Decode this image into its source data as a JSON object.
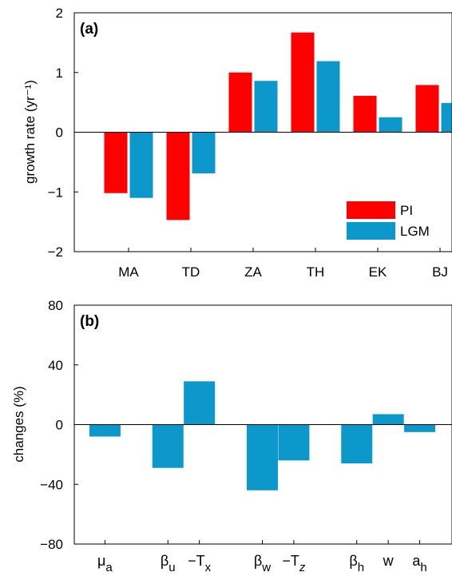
{
  "colors": {
    "pi": "#ff0000",
    "lgm": "#0d98cb",
    "axis": "#000000",
    "background": "#ffffff"
  },
  "chart_data": [
    {
      "type": "bar",
      "panel_label": "(a)",
      "ylabel": "growth rate (yr⁻¹)",
      "ylim": [
        -2,
        2
      ],
      "yticks": [
        2,
        1,
        0,
        -1,
        -2
      ],
      "ytick_labels": [
        "2",
        "1",
        "0",
        "−1",
        "−2"
      ],
      "categories": [
        "MA",
        "TD",
        "ZA",
        "TH",
        "EK",
        "BJ"
      ],
      "series": [
        {
          "name": "PI",
          "color": "#ff0000",
          "values": [
            -1.02,
            -1.47,
            1.0,
            1.67,
            0.61,
            0.79
          ]
        },
        {
          "name": "LGM",
          "color": "#0d98cb",
          "values": [
            -1.1,
            -0.69,
            0.86,
            1.19,
            0.25,
            0.49
          ]
        }
      ],
      "legend": {
        "placement": "bottom-right",
        "items": [
          "PI",
          "LGM"
        ]
      },
      "grid": false
    },
    {
      "type": "bar",
      "panel_label": "(b)",
      "ylabel": "changes (%)",
      "ylim": [
        -80,
        80
      ],
      "yticks": [
        80,
        40,
        0,
        -40,
        -80
      ],
      "ytick_labels": [
        "80",
        "40",
        "0",
        "−40",
        "−80"
      ],
      "categories": [
        {
          "base": "μ",
          "sub": "a",
          "prefix": "",
          "italic_sub": false
        },
        {
          "base": "β",
          "sub": "u",
          "prefix": "",
          "italic_sub": false
        },
        {
          "base": "T",
          "sub": "x",
          "prefix": "−",
          "italic_sub": false
        },
        {
          "base": "β",
          "sub": "w",
          "prefix": "",
          "italic_sub": false
        },
        {
          "base": "T",
          "sub": "z",
          "prefix": "−",
          "italic_sub": true
        },
        {
          "base": "β",
          "sub": "h",
          "prefix": "",
          "italic_sub": false
        },
        {
          "base": "w",
          "sub": "",
          "prefix": "",
          "italic_sub": false
        },
        {
          "base": "a",
          "sub": "h",
          "prefix": "",
          "italic_sub": false
        }
      ],
      "x_positions": [
        1,
        3,
        4,
        6,
        7,
        9,
        10,
        11
      ],
      "xlim": [
        0,
        12
      ],
      "series": [
        {
          "color": "#0d98cb",
          "values": [
            -8,
            -29,
            29,
            -44,
            -24,
            -26,
            7,
            -5
          ]
        }
      ],
      "grid": false
    }
  ]
}
